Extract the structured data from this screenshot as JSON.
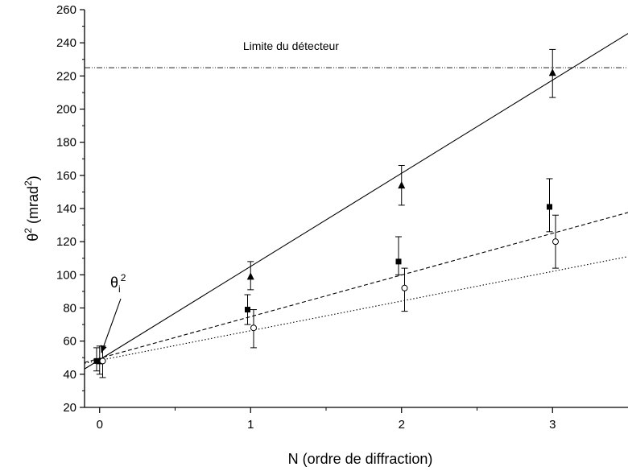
{
  "chart_data": {
    "type": "scatter",
    "xlabel": "N (ordre de diffraction)",
    "ylabel": {
      "main": "θ",
      "sup1": "2",
      "paren_open": " (mrad",
      "sup2": "2",
      "paren_close": ")"
    },
    "xlim": [
      -0.1,
      3.5
    ],
    "ylim": [
      20,
      260
    ],
    "x_ticks": [
      0,
      1,
      2,
      3
    ],
    "y_ticks": [
      20,
      40,
      60,
      80,
      100,
      120,
      140,
      160,
      180,
      200,
      220,
      240,
      260
    ],
    "threshold": {
      "y": 225,
      "label": "Limite du détecteur"
    },
    "annotation": {
      "text": "θ",
      "sub": "i",
      "sup": "2",
      "arrow_to": [
        0,
        48
      ]
    },
    "series": [
      {
        "marker": "triangle",
        "x": [
          0,
          1,
          2,
          3
        ],
        "y": [
          48,
          99,
          154,
          222
        ],
        "err_low": [
          40,
          91,
          142,
          207
        ],
        "err_high": [
          57,
          108,
          166,
          236
        ]
      },
      {
        "marker": "square",
        "x": [
          0,
          1,
          2,
          3
        ],
        "y": [
          48,
          79,
          108,
          141
        ],
        "err_low": [
          42,
          70,
          100,
          126
        ],
        "err_high": [
          56,
          88,
          123,
          158
        ]
      },
      {
        "marker": "circle",
        "x": [
          0,
          1,
          2,
          3
        ],
        "y": [
          48,
          68,
          92,
          120
        ],
        "err_low": [
          38,
          56,
          78,
          104
        ],
        "err_high": [
          57,
          79,
          104,
          136
        ]
      }
    ],
    "fits": [
      {
        "style": "solid",
        "x": [
          -0.1,
          3.5
        ],
        "y": [
          43.2,
          245.6
        ]
      },
      {
        "style": "dashed",
        "x": [
          -0.1,
          3.5
        ],
        "y": [
          47.1,
          137.6
        ]
      },
      {
        "style": "dotted",
        "x": [
          -0.1,
          3.5
        ],
        "y": [
          46.6,
          111.0
        ]
      }
    ]
  }
}
